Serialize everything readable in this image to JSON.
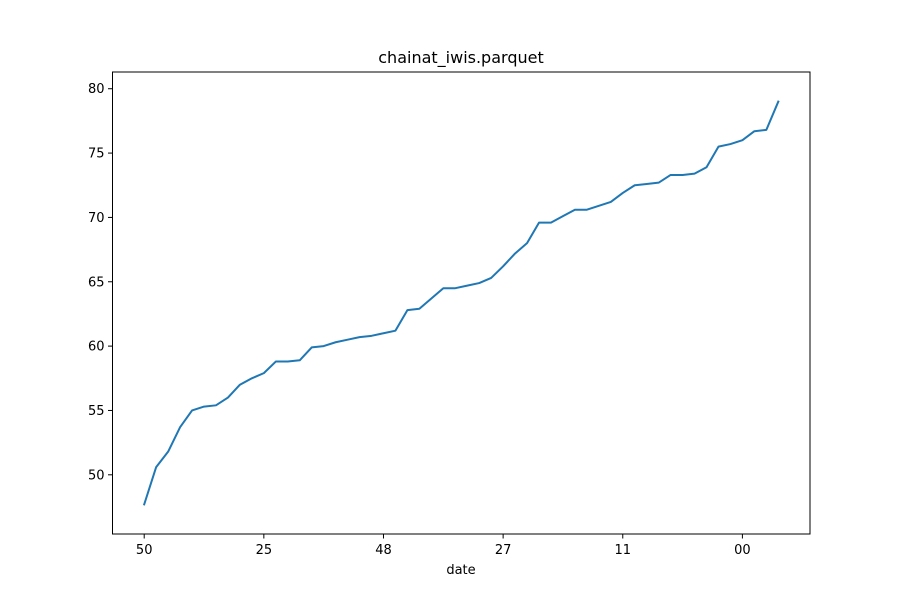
{
  "chart_data": {
    "type": "line",
    "title": "chainat_iwis.parquet",
    "xlabel": "date",
    "ylabel": "",
    "x_tick_labels": [
      "50",
      "25",
      "48",
      "27",
      "11",
      "00"
    ],
    "y_ticks": [
      50,
      55,
      60,
      65,
      70,
      75,
      80
    ],
    "ylim": [
      45.4,
      81.3
    ],
    "grid": false,
    "line_color": "#1f77b4",
    "series": [
      {
        "values": [
          47.7,
          50.6,
          51.8,
          53.7,
          55.0,
          55.3,
          55.4,
          56.0,
          57.0,
          57.5,
          57.9,
          58.8,
          58.8,
          58.9,
          59.9,
          60.0,
          60.3,
          60.5,
          60.7,
          60.8,
          61.0,
          61.2,
          62.8,
          62.9,
          63.7,
          64.5,
          64.5,
          64.7,
          64.9,
          65.3,
          66.2,
          67.2,
          68.0,
          69.6,
          69.6,
          70.1,
          70.6,
          70.6,
          70.9,
          71.2,
          71.9,
          72.5,
          72.6,
          72.7,
          73.3,
          73.3,
          73.4,
          73.9,
          75.5,
          75.7,
          76.0,
          76.7,
          76.8,
          79.0
        ]
      }
    ]
  }
}
